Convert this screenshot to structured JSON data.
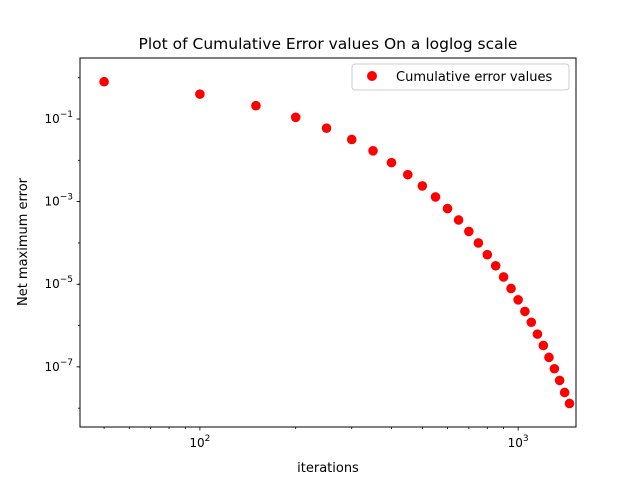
{
  "chart_data": {
    "type": "scatter",
    "title": "Plot of Cumulative Error values On a loglog scale",
    "xlabel": "iterations",
    "ylabel": "Net  maximum error",
    "xscale": "log",
    "yscale": "log",
    "xlim": [
      42,
      1520
    ],
    "ylim": [
      3.5e-09,
      3.0
    ],
    "x_major_ticks": [
      {
        "value": 100,
        "base": "10",
        "exp": "2"
      },
      {
        "value": 1000,
        "base": "10",
        "exp": "3"
      }
    ],
    "y_major_ticks": [
      {
        "value": 1e-07,
        "base": "10",
        "exp": "−7"
      },
      {
        "value": 1e-05,
        "base": "10",
        "exp": "−5"
      },
      {
        "value": 0.001,
        "base": "10",
        "exp": "−3"
      },
      {
        "value": 0.1,
        "base": "10",
        "exp": "−1"
      }
    ],
    "grid": false,
    "legend_position": "upper-right",
    "series": [
      {
        "name": "Cumulative error values",
        "color": "#ff0000",
        "marker": "circle",
        "x": [
          50,
          100,
          150,
          200,
          250,
          300,
          350,
          400,
          450,
          500,
          550,
          600,
          650,
          700,
          750,
          800,
          850,
          900,
          950,
          1000,
          1050,
          1100,
          1150,
          1200,
          1250,
          1300,
          1350,
          1400,
          1450
        ],
        "y": [
          0.8,
          0.4,
          0.21,
          0.11,
          0.06,
          0.032,
          0.017,
          0.0088,
          0.0045,
          0.0024,
          0.0013,
          0.00068,
          0.00036,
          0.00019,
          0.0001,
          5.2e-05,
          2.8e-05,
          1.5e-05,
          7.9e-06,
          4.2e-06,
          2.2e-06,
          1.2e-06,
          6.2e-07,
          3.3e-07,
          1.7e-07,
          9e-08,
          4.7e-08,
          2.4e-08,
          1.3e-08
        ]
      }
    ]
  }
}
